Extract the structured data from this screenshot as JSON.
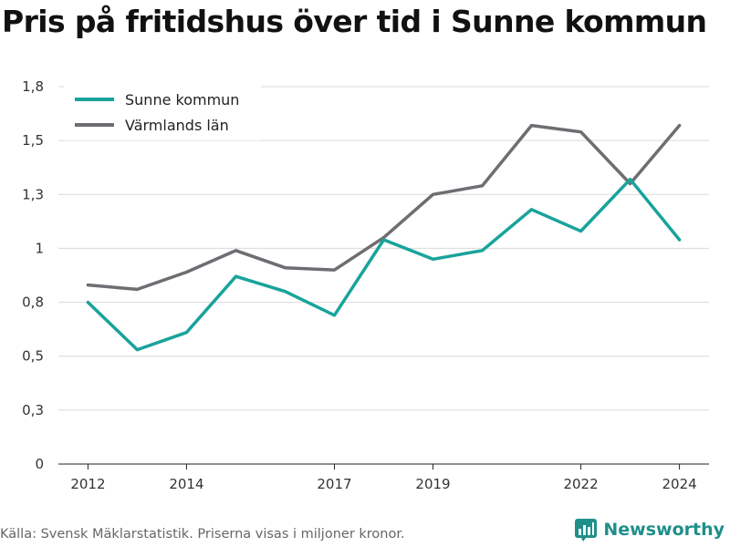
{
  "title": "Pris på fritidshus över tid i Sunne kommun",
  "source": "Källa: Svensk Mäklarstatistik. Priserna visas i miljoner kronor.",
  "brand": {
    "name": "Newsworthy",
    "icon": "bar-chart-logo-icon",
    "color": "#1f8f8a"
  },
  "chart_data": {
    "type": "line",
    "title": "Pris på fritidshus över tid i Sunne kommun",
    "xlabel": "",
    "ylabel": "",
    "x": [
      2012,
      2013,
      2014,
      2015,
      2016,
      2017,
      2018,
      2019,
      2020,
      2021,
      2022,
      2023,
      2024
    ],
    "x_ticks": [
      "2012",
      "2014",
      "2017",
      "2019",
      "2022",
      "2024"
    ],
    "x_tick_values": [
      2012,
      2014,
      2017,
      2019,
      2022,
      2024
    ],
    "y_ticks": [
      "0",
      "0,3",
      "0,5",
      "0,8",
      "1",
      "1,3",
      "1,5",
      "1,8"
    ],
    "y_tick_values": [
      0,
      0.25,
      0.5,
      0.75,
      1.0,
      1.25,
      1.5,
      1.75
    ],
    "ylim": [
      0,
      1.75
    ],
    "xlim": [
      2011.4,
      2024.6
    ],
    "grid": true,
    "legend_position": "top-left",
    "series": [
      {
        "name": "Sunne kommun",
        "color": "#18a39b",
        "values": [
          0.75,
          0.53,
          0.61,
          0.87,
          0.8,
          0.69,
          1.04,
          0.95,
          0.99,
          1.18,
          1.08,
          1.32,
          1.04
        ]
      },
      {
        "name": "Värmlands län",
        "color": "#6d6d72",
        "values": [
          0.83,
          0.81,
          0.89,
          0.99,
          0.91,
          0.9,
          1.05,
          1.25,
          1.29,
          1.57,
          1.54,
          1.3,
          1.57
        ]
      }
    ]
  }
}
